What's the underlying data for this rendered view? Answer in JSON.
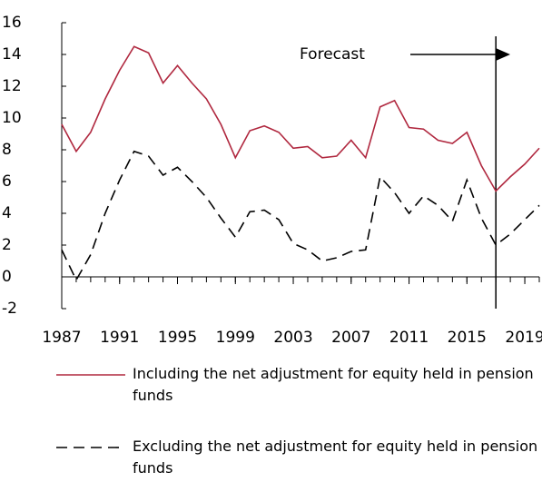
{
  "chart_data": {
    "type": "line",
    "x": [
      1987,
      1988,
      1989,
      1990,
      1991,
      1992,
      1993,
      1994,
      1995,
      1996,
      1997,
      1998,
      1999,
      2000,
      2001,
      2002,
      2003,
      2004,
      2005,
      2006,
      2007,
      2008,
      2009,
      2010,
      2011,
      2012,
      2013,
      2014,
      2015,
      2016,
      2017,
      2018,
      2019,
      2020
    ],
    "series": [
      {
        "name": "Including the net adjustment for equity held in pension funds",
        "color": "#b0283f",
        "dash": "solid",
        "values": [
          9.6,
          7.9,
          9.1,
          11.2,
          13.0,
          14.5,
          14.1,
          12.2,
          13.3,
          12.2,
          11.2,
          9.6,
          7.5,
          9.2,
          9.5,
          9.1,
          8.1,
          8.2,
          7.5,
          7.6,
          8.6,
          7.5,
          10.7,
          11.1,
          9.4,
          9.3,
          8.6,
          8.4,
          9.1,
          7.0,
          5.4,
          6.3,
          7.1,
          8.1
        ]
      },
      {
        "name": "Excluding the net adjustment for equity held in pension funds",
        "color": "#000000",
        "dash": "dashed",
        "values": [
          1.7,
          -0.2,
          1.4,
          4.0,
          6.1,
          7.9,
          7.6,
          6.4,
          6.9,
          6.0,
          5.0,
          3.7,
          2.5,
          4.1,
          4.2,
          3.6,
          2.1,
          1.7,
          1.0,
          1.2,
          1.6,
          1.7,
          6.3,
          5.3,
          4.0,
          5.1,
          4.5,
          3.5,
          6.1,
          3.7,
          2.0,
          2.7,
          3.6,
          4.5
        ]
      }
    ],
    "xlim": [
      1987,
      2020
    ],
    "xticks": [
      1987,
      1991,
      1995,
      1999,
      2003,
      2007,
      2011,
      2015,
      2019
    ],
    "ylim": [
      -2,
      16
    ],
    "yticks": [
      -2,
      0,
      2,
      4,
      6,
      8,
      10,
      12,
      14,
      16
    ],
    "annotation": {
      "text": "Forecast",
      "x": 2017
    }
  }
}
